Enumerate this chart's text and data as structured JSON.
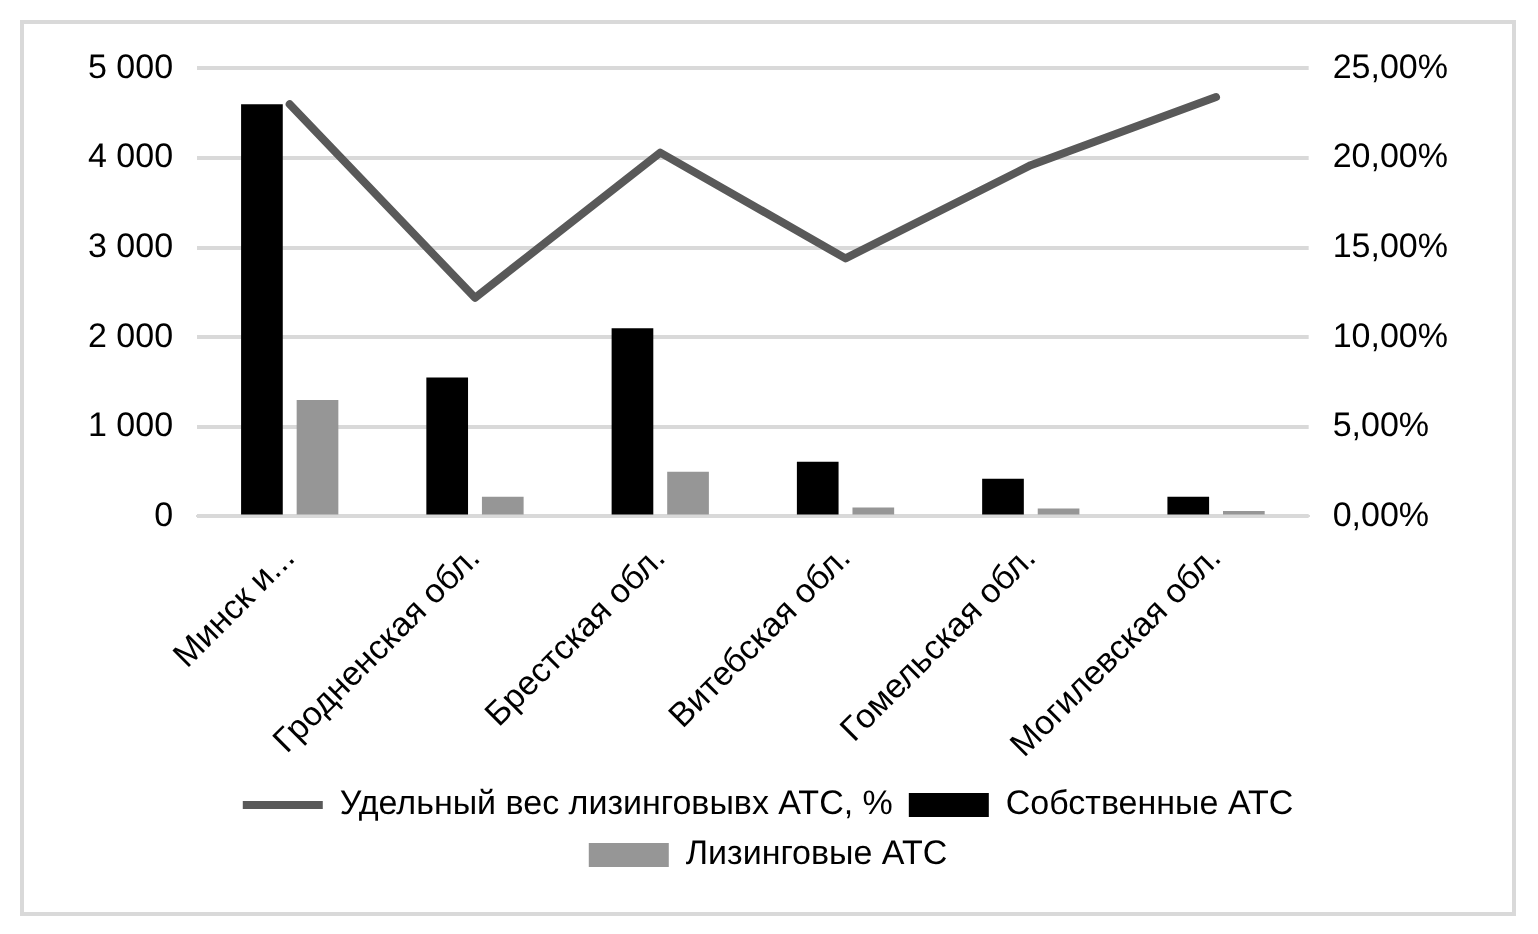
{
  "chart_data": {
    "type": "bar",
    "categories": [
      "Минск и...",
      "Гродненская обл.",
      "Брестская обл.",
      "Витебская обл.",
      "Гомельская обл.",
      "Могилевская обл."
    ],
    "series": [
      {
        "name": "Собственные АТС",
        "color": "#000000",
        "values": [
          4600,
          1550,
          2100,
          610,
          420,
          220
        ]
      },
      {
        "name": "Лизинговые АТС",
        "color": "#969696",
        "values": [
          1300,
          220,
          500,
          100,
          90,
          60
        ]
      },
      {
        "name": "Удельный вес лизинговывх АТС, %",
        "type": "line",
        "axis": "y2",
        "color": "#595959",
        "values": [
          23.0,
          12.2,
          20.3,
          14.4,
          19.6,
          23.4
        ]
      }
    ],
    "ylim": [
      0,
      5000
    ],
    "yticks": [
      {
        "value": 0,
        "label": "0"
      },
      {
        "value": 1000,
        "label": "1 000"
      },
      {
        "value": 2000,
        "label": "2 000"
      },
      {
        "value": 3000,
        "label": "3 000"
      },
      {
        "value": 4000,
        "label": "4 000"
      },
      {
        "value": 5000,
        "label": "5 000"
      }
    ],
    "y2lim": [
      0,
      25
    ],
    "y2ticks": [
      {
        "value": 0,
        "label": "0,00%"
      },
      {
        "value": 5,
        "label": "5,00%"
      },
      {
        "value": 10,
        "label": "10,00%"
      },
      {
        "value": 15,
        "label": "15,00%"
      },
      {
        "value": 20,
        "label": "20,00%"
      },
      {
        "value": 25,
        "label": "25,00%"
      }
    ],
    "grid": "y",
    "legend": "bottom",
    "marker": "none"
  }
}
